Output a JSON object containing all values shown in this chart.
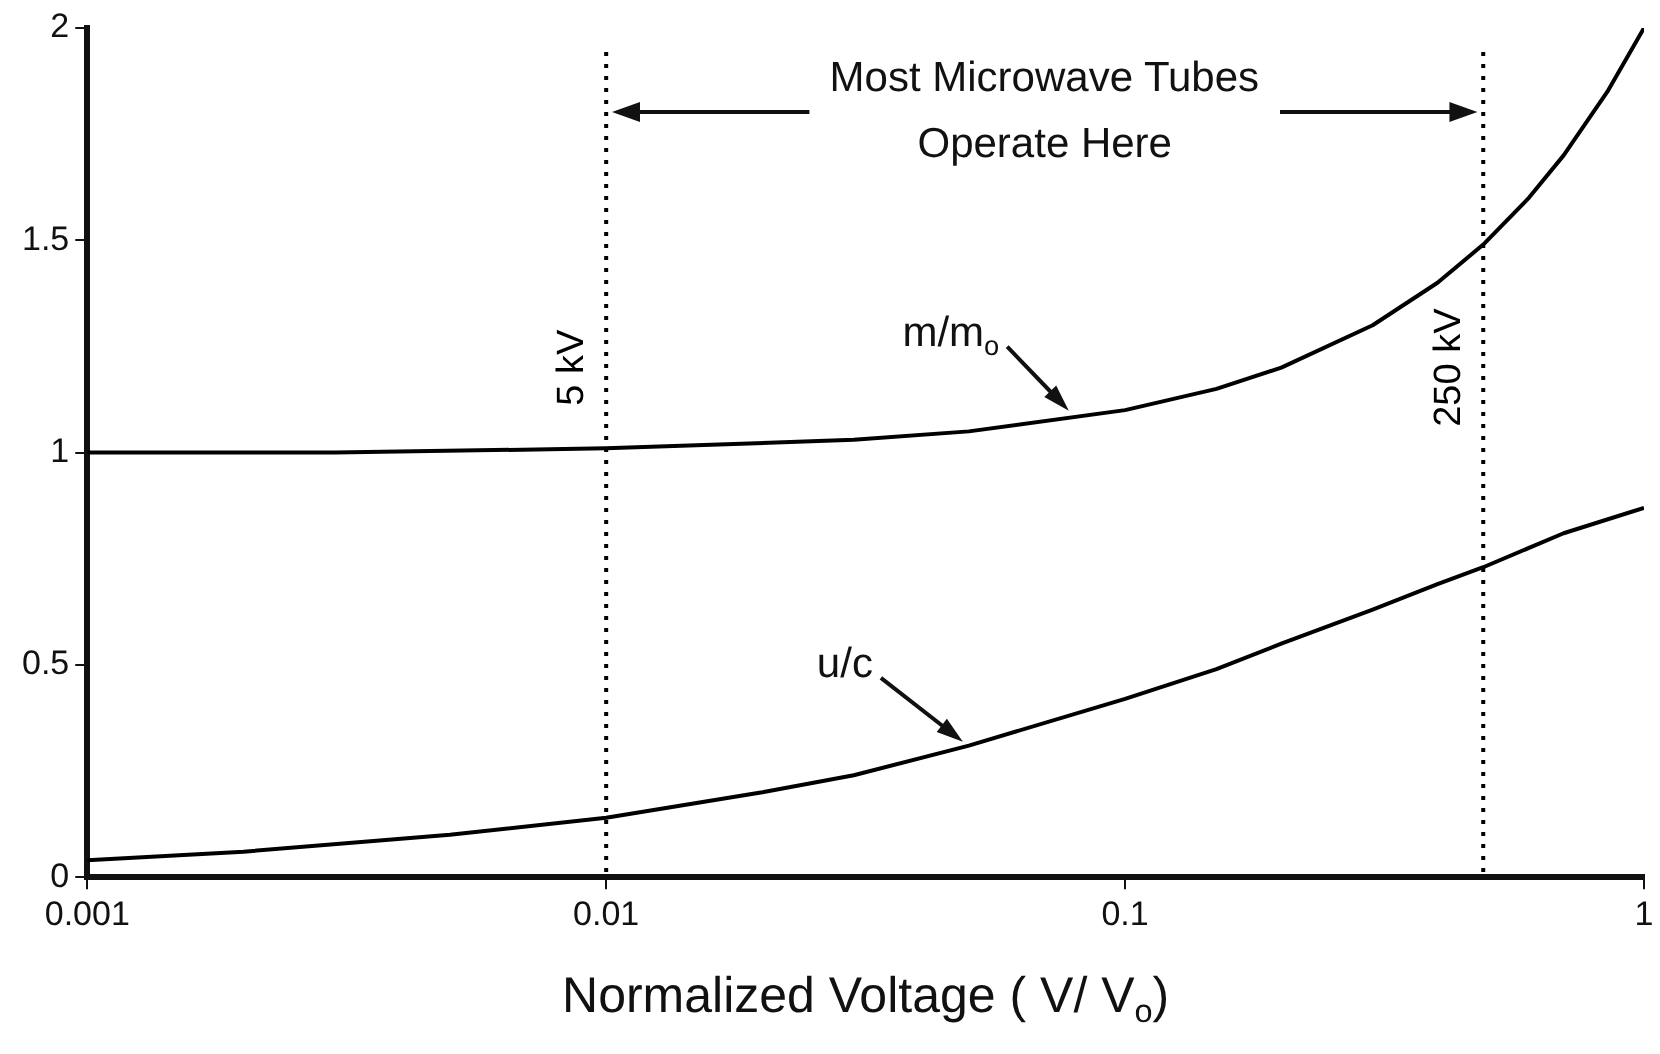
{
  "chart_data": {
    "type": "line",
    "xlabel": "Normalized Voltage ( V/ V$_{o}$)",
    "log": "x",
    "xlim": [
      0.001,
      1
    ],
    "xticks": [
      0.001,
      0.01,
      0.1,
      1
    ],
    "ylim": [
      0,
      2
    ],
    "yticks": [
      0,
      0.5,
      1,
      1.5,
      2
    ],
    "grid": false,
    "legend": false,
    "marker": "none",
    "line_style": "solid",
    "series": [
      {
        "color": "#000000",
        "x": [
          0.001,
          0.003,
          0.01,
          0.03,
          0.05,
          0.1,
          0.15,
          0.2,
          0.3,
          0.4,
          0.49,
          0.6,
          0.7,
          0.85,
          1
        ],
        "values": [
          1.0,
          1.0,
          1.01,
          1.03,
          1.05,
          1.1,
          1.15,
          1.2,
          1.3,
          1.4,
          1.49,
          1.6,
          1.7,
          1.85,
          2.0
        ]
      },
      {
        "color": "#000000",
        "x": [
          0.001,
          0.002,
          0.005,
          0.01,
          0.02,
          0.03,
          0.05,
          0.1,
          0.15,
          0.2,
          0.3,
          0.4,
          0.49,
          0.7,
          1
        ],
        "values": [
          0.04,
          0.06,
          0.1,
          0.14,
          0.2,
          0.24,
          0.31,
          0.42,
          0.49,
          0.55,
          0.63,
          0.69,
          0.73,
          0.81,
          0.87
        ]
      }
    ],
    "ref_lines": [
      {
        "axis": "x",
        "value": 0.01,
        "label": "5 kV",
        "line_style": "dotted",
        "color": "#000000"
      },
      {
        "axis": "x",
        "value": 0.49,
        "label": "250 kV",
        "line_style": "dotted",
        "color": "#000000"
      }
    ],
    "annotations": [
      "Most Microwave Tubes\nOperate Here",
      {
        "text": "m/m$_{o}$",
        "x": 0.08,
        "y": 1.08
      },
      {
        "text": "u/c",
        "x": 0.05,
        "y": 0.3
      }
    ]
  }
}
